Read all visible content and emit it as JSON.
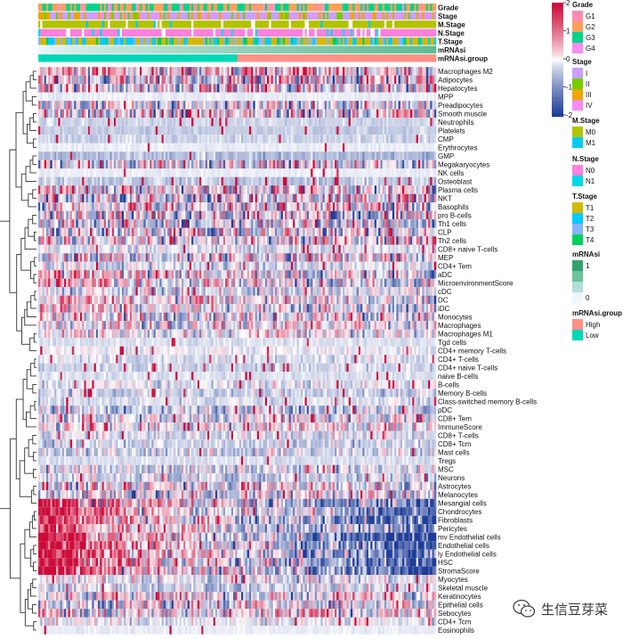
{
  "chart_data": {
    "type": "heatmap",
    "title": "",
    "color_scale": {
      "min": -2,
      "max": 2,
      "ticks": [
        "2",
        "1",
        "0",
        "-1",
        "-2"
      ],
      "low_color": "#1e3c96",
      "mid_color": "#ffffff",
      "high_color": "#cc0a3a"
    },
    "row_labels": [
      "Macrophages M2",
      "Adipocytes",
      "Hepatocytes",
      "MPP",
      "Preadipocytes",
      "Smooth muscle",
      "Neutrophils",
      "Platelets",
      "CMP",
      "Erythrocytes",
      "GMP",
      "Megakaryocytes",
      "NK cells",
      "Osteoblast",
      "Plasma cells",
      "NKT",
      "Basophils",
      "pro B-cells",
      "Th1 cells",
      "CLP",
      "Th2 cells",
      "CD8+ naive T-cells",
      "MEP",
      "CD4+ Tem",
      "aDC",
      "MicroenvironmentScore",
      "cDC",
      "DC",
      "iDC",
      "Monocytes",
      "Macrophages",
      "Macrophages M1",
      "Tgd cells",
      "CD4+ memory T-cells",
      "CD4+ T-cells",
      "CD4+ naive T-cells",
      "naive B-cells",
      "B-cells",
      "Memory B-cells",
      "Class-switched memory B-cells",
      "pDC",
      "CD8+ Tem",
      "ImmuneScore",
      "CD8+ T-cells",
      "CD8+ Tcm",
      "Mast cells",
      "Tregs",
      "MSC",
      "Neurons",
      "Astrocytes",
      "Melanocytes",
      "Mesangial cells",
      "Chondrocytes",
      "Fibroblasts",
      "Pericytes",
      "mv Endothelial cells",
      "Endothelial cells",
      "ly Endothelial cells",
      "HSC",
      "StromaScore",
      "Myocytes",
      "Skeletal muscle",
      "Keratinocytes",
      "Epithelial cells",
      "Sebocytes",
      "CD4+ Tcm",
      "Eosinophils"
    ],
    "row_mean": [
      0.2,
      0,
      0,
      -0.1,
      -0.2,
      0,
      -0.3,
      -0.35,
      -0.3,
      -0.1,
      -0.5,
      -0.2,
      -0.1,
      -0.4,
      0,
      0,
      0,
      0,
      -0.3,
      -0.2,
      0,
      -0.2,
      -0.1,
      -0.2,
      0,
      0,
      -0.2,
      0,
      0,
      0,
      0,
      -0.1,
      -0.2,
      -0.1,
      -0.2,
      -0.3,
      -0.2,
      -0.1,
      -0.3,
      -0.2,
      -0.4,
      -0.1,
      0,
      -0.2,
      -0.3,
      -0.3,
      -0.2,
      -0.2,
      -0.3,
      0,
      -0.1,
      0,
      -0.1,
      -0.2,
      -0.1,
      -0.2,
      -0.2,
      -0.1,
      -0.2,
      -0.1,
      -0.1,
      -0.3,
      0,
      -0.1,
      0,
      -0.1,
      -0.1
    ],
    "row_sd": [
      1,
      1.1,
      1,
      0.05,
      0.9,
      1,
      0.1,
      0.1,
      0.15,
      0.05,
      0.2,
      0.8,
      0.05,
      0.2,
      0.9,
      1,
      1,
      1,
      0.9,
      0.9,
      0.9,
      0.3,
      0.9,
      0.4,
      0.8,
      0.8,
      0.5,
      0.7,
      0.7,
      0.8,
      0.7,
      0.6,
      0.1,
      0.2,
      0.2,
      0.2,
      0.1,
      0.3,
      0.3,
      0.2,
      0.5,
      0.6,
      0.7,
      0.3,
      0.3,
      0.4,
      0.1,
      0.5,
      0.4,
      0.7,
      0.8,
      0.8,
      0.7,
      0.7,
      0.7,
      0.8,
      0.8,
      0.8,
      0.8,
      0.8,
      0.5,
      0.4,
      0.8,
      0.8,
      0.8,
      0.3,
      0.05
    ],
    "row_spike_rate": [
      0,
      0,
      0,
      0,
      0,
      0,
      0.05,
      0.04,
      0.05,
      0.02,
      0.04,
      0.05,
      0.01,
      0.08,
      0.05,
      0,
      0,
      0,
      0,
      0,
      0,
      0.05,
      0,
      0.05,
      0,
      0,
      0.03,
      0,
      0,
      0,
      0,
      0,
      0.03,
      0.04,
      0.04,
      0.05,
      0.03,
      0.05,
      0.05,
      0.04,
      0.03,
      0.05,
      0.03,
      0.05,
      0.04,
      0.04,
      0.02,
      0.03,
      0.04,
      0.03,
      0,
      0,
      0,
      0,
      0,
      0,
      0,
      0,
      0,
      0,
      0.03,
      0.03,
      0,
      0,
      0,
      0.03,
      0.02
    ],
    "row_trend_low_to_high_mrnasi": [
      0,
      0,
      0,
      0,
      0,
      0,
      0,
      0,
      0,
      0,
      0,
      0,
      0,
      0,
      0,
      0,
      0,
      0,
      0,
      0,
      0,
      0,
      0,
      0,
      0.5,
      0.6,
      0,
      0.3,
      0.3,
      0,
      0,
      0,
      0,
      0,
      0,
      0,
      0,
      0,
      0,
      0,
      0,
      0,
      0,
      0,
      0,
      0,
      0,
      0,
      0,
      0,
      0,
      1.2,
      1.2,
      1.4,
      1.0,
      1.6,
      1.6,
      1.4,
      1.6,
      1.5,
      0,
      0,
      0,
      0,
      0,
      0,
      0
    ],
    "annotations": [
      {
        "name": "Grade",
        "levels": [
          "G1",
          "G2",
          "G3",
          "G4"
        ],
        "colors": [
          "#f88cb4",
          "#fda05a",
          "#00d48a",
          "#f98cf0"
        ]
      },
      {
        "name": "Stage",
        "levels": [
          "I",
          "II",
          "III",
          "IV"
        ],
        "colors": [
          "#c9a0ff",
          "#77cc00",
          "#e8a800",
          "#f58cf0"
        ]
      },
      {
        "name": "M.Stage",
        "levels": [
          "M0",
          "M1"
        ],
        "colors": [
          "#b2c400",
          "#00ccf0"
        ]
      },
      {
        "name": "N.Stage",
        "levels": [
          "N0",
          "N1"
        ],
        "colors": [
          "#ff80dd",
          "#00d8e8"
        ]
      },
      {
        "name": "T.Stage",
        "levels": [
          "T1",
          "T2",
          "T3",
          "T4"
        ],
        "colors": [
          "#d4b800",
          "#00ccff",
          "#88b4ff",
          "#00d060"
        ]
      },
      {
        "name": "mRNAsi",
        "levels": [
          "1",
          "",
          "",
          "0"
        ],
        "colors": [
          "#30a46c",
          "#6cc29a",
          "#b0e0d6",
          "#eef6fa"
        ],
        "range": [
          0,
          1
        ]
      },
      {
        "name": "mRNAsi.group",
        "levels": [
          "High",
          "Low"
        ],
        "colors": [
          "#ff9088",
          "#00d8b8"
        ],
        "low_fraction": 0.5
      }
    ]
  },
  "watermark": {
    "text": "生信豆芽菜"
  }
}
